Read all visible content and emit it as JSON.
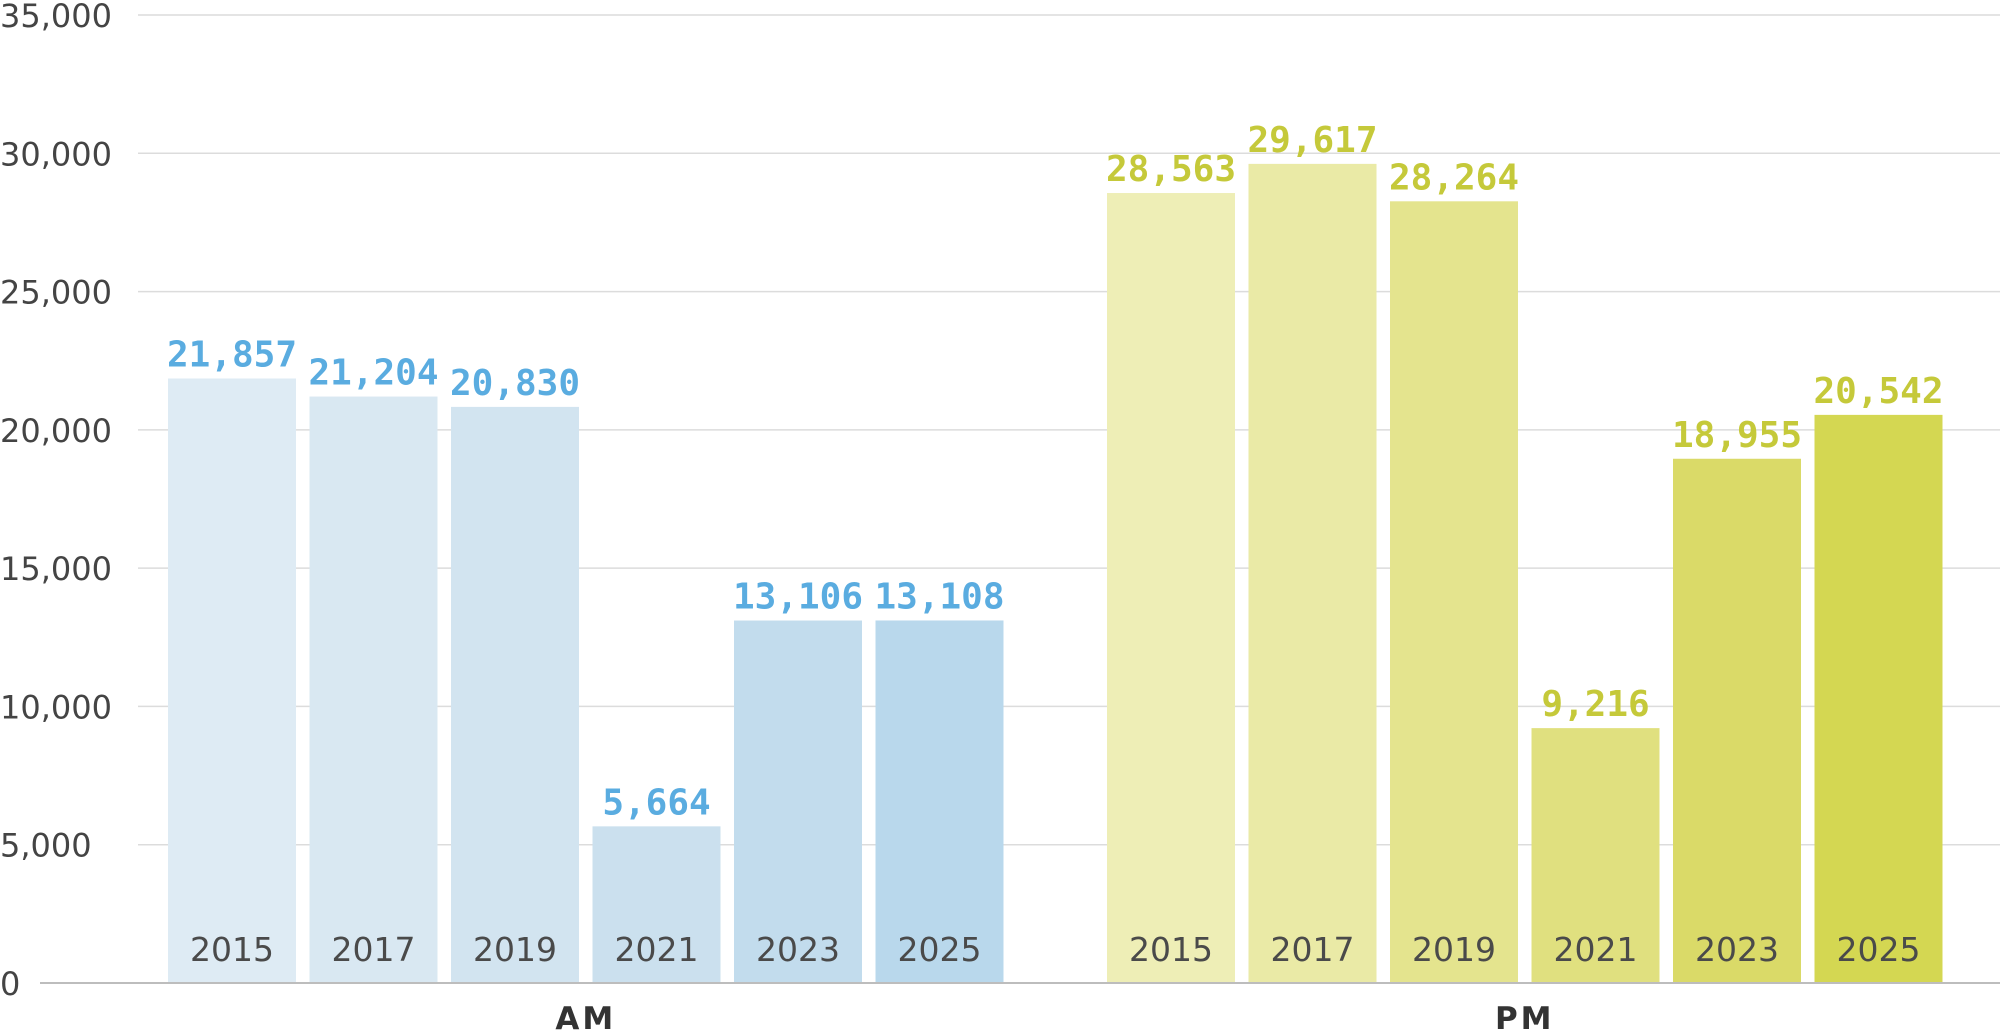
{
  "chart_data": {
    "type": "bar",
    "title": "",
    "xlabel": "",
    "ylabel": "",
    "ylim": [
      0,
      35000
    ],
    "yticks": [
      0,
      5000,
      10000,
      15000,
      20000,
      25000,
      30000,
      35000
    ],
    "ytick_labels": [
      "0",
      "5,000",
      "10,000",
      "15,000",
      "20,000",
      "25,000",
      "30,000",
      "35,000"
    ],
    "grid": true,
    "legend": "none",
    "groups": [
      {
        "name": "AM",
        "label_color": "#5aace0",
        "categories": [
          "2015",
          "2017",
          "2019",
          "2021",
          "2023",
          "2025"
        ],
        "values": [
          21857,
          21204,
          20830,
          5664,
          13106,
          13108
        ],
        "value_labels": [
          "21,857",
          "21,204",
          "20,830",
          "5,664",
          "13,106",
          "13,108"
        ],
        "colors": [
          "#deebf4",
          "#d9e8f2",
          "#d2e4f0",
          "#cbe0ee",
          "#c2dced",
          "#b9d8ec"
        ]
      },
      {
        "name": "PM",
        "label_color": "#c5c93a",
        "categories": [
          "2015",
          "2017",
          "2019",
          "2021",
          "2023",
          "2025"
        ],
        "values": [
          28563,
          29617,
          28264,
          9216,
          18955,
          20542
        ],
        "value_labels": [
          "28,563",
          "29,617",
          "28,264",
          "9,216",
          "18,955",
          "20,542"
        ],
        "colors": [
          "#eeeeb6",
          "#eaeaa6",
          "#e4e48e",
          "#e0e07f",
          "#dada68",
          "#d4d752"
        ]
      }
    ]
  }
}
